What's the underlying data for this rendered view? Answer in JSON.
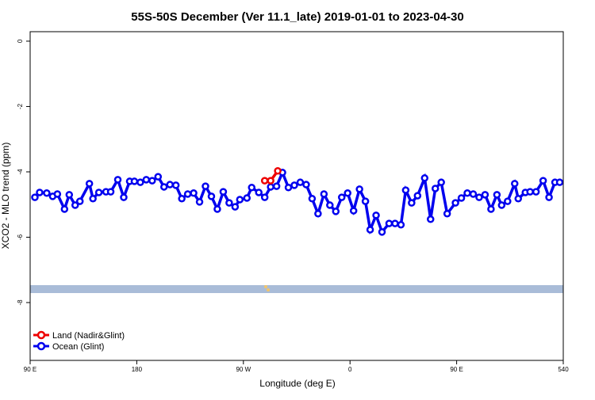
{
  "chart_data": {
    "type": "line",
    "title": "55S-50S December (Ver 11.1_late)   2019-01-01 to 2023-04-30",
    "x_label": "Longitude (deg E)",
    "y_label": "XCO2 - MLO trend (ppm)",
    "xlim": [
      90,
      540
    ],
    "ylim": [
      -9.77,
      0.29
    ],
    "xticks": [
      {
        "value": 90,
        "label": "90 E"
      },
      180,
      {
        "value": 270,
        "label": "90 W"
      },
      {
        "value": 360,
        "label": "0"
      },
      {
        "value": 450,
        "label": "90 E"
      },
      540
    ],
    "yticks": [
      0,
      -2,
      -4,
      -6,
      -8
    ],
    "legend": "bottom-left",
    "series": [
      {
        "name": "Ocean (Glint)",
        "color": "#0000ee",
        "x": [
          94,
          98,
          104,
          109,
          113,
          119,
          123,
          128,
          132,
          140,
          143,
          148,
          154,
          158,
          164,
          169,
          174,
          178,
          183,
          188,
          193,
          198,
          203,
          208,
          213,
          218,
          223,
          228,
          233,
          238,
          243,
          248,
          253,
          258,
          263,
          267,
          273,
          277,
          283,
          288,
          293,
          298,
          303,
          308,
          313,
          318,
          323,
          328,
          333,
          338,
          343,
          348,
          353,
          358,
          363,
          368,
          373,
          377,
          382,
          387,
          393,
          398,
          403,
          407,
          412,
          417,
          423,
          428,
          432,
          437,
          442,
          449,
          454,
          459,
          464,
          469,
          474,
          479,
          484,
          488,
          493,
          499,
          502,
          508,
          512,
          517,
          523,
          528,
          533,
          537
        ],
        "values": [
          -4.78,
          -4.63,
          -4.65,
          -4.75,
          -4.68,
          -5.14,
          -4.7,
          -5.02,
          -4.9,
          -4.36,
          -4.82,
          -4.63,
          -4.61,
          -4.61,
          -4.24,
          -4.78,
          -4.29,
          -4.29,
          -4.32,
          -4.24,
          -4.27,
          -4.15,
          -4.46,
          -4.39,
          -4.41,
          -4.82,
          -4.68,
          -4.65,
          -4.92,
          -4.44,
          -4.75,
          -5.14,
          -4.61,
          -4.95,
          -5.07,
          -4.85,
          -4.8,
          -4.48,
          -4.63,
          -4.78,
          -4.46,
          -4.44,
          -4.02,
          -4.48,
          -4.41,
          -4.32,
          -4.39,
          -4.82,
          -5.28,
          -4.68,
          -5.02,
          -5.21,
          -4.78,
          -4.65,
          -5.19,
          -4.53,
          -4.9,
          -5.77,
          -5.33,
          -5.84,
          -5.58,
          -5.58,
          -5.62,
          -4.56,
          -4.95,
          -4.73,
          -4.19,
          -5.45,
          -4.51,
          -4.32,
          -5.28,
          -4.95,
          -4.8,
          -4.65,
          -4.68,
          -4.78,
          -4.7,
          -5.14,
          -4.7,
          -5.02,
          -4.9,
          -4.36,
          -4.82,
          -4.63,
          -4.61,
          -4.61,
          -4.27,
          -4.78,
          -4.32,
          -4.32
        ]
      },
      {
        "name": "Land (Nadir&Glint)",
        "color": "#ee0000",
        "x": [
          288,
          293,
          299
        ],
        "values": [
          -4.27,
          -4.27,
          -3.97
        ]
      }
    ]
  }
}
